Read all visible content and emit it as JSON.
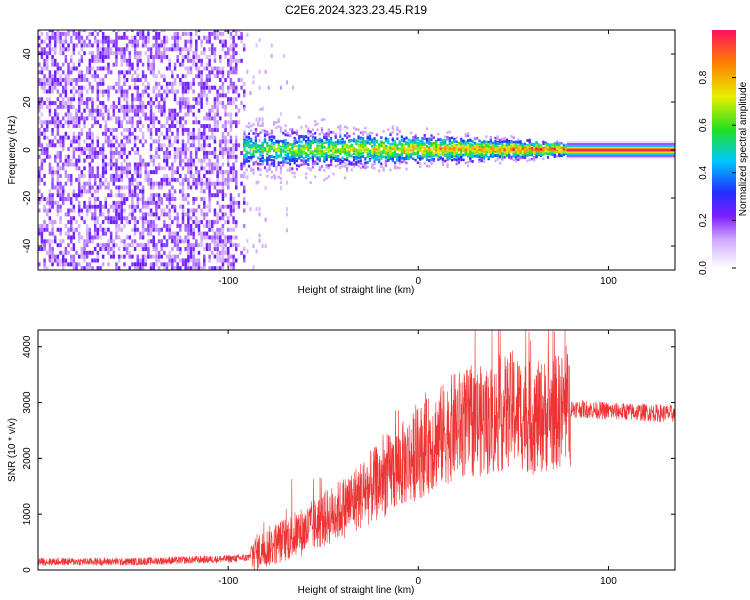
{
  "title": "C2E6.2024.323.23.45.R19",
  "chart_data": [
    {
      "type": "heatmap",
      "xlabel": "Height of straight line (km)",
      "ylabel": "Frequency (Hz)",
      "xlim": [
        -200,
        135
      ],
      "ylim": [
        -50,
        50
      ],
      "xticks": [
        -100,
        0,
        100
      ],
      "yticks": [
        -40,
        -20,
        0,
        20,
        40
      ],
      "colorbar": {
        "label": "Normalized spectral amplitude",
        "range": [
          0,
          1
        ],
        "ticks": [
          "0.0",
          "0.2",
          "0.4",
          "0.6",
          "0.8"
        ]
      },
      "regions": [
        {
          "from": -200,
          "to": -92,
          "description_value": "broadband noise",
          "level": 0.2
        },
        {
          "from": -92,
          "to": 78,
          "center_hz": 0,
          "spread_hz": 8,
          "level": 0.5
        },
        {
          "from": 78,
          "to": 135,
          "center_hz": 0,
          "spread_hz": 2,
          "level": 0.95
        }
      ]
    },
    {
      "type": "line",
      "xlabel": "Height of straight line (km)",
      "ylabel": "SNR (10 * v/v)",
      "xlim": [
        -200,
        135
      ],
      "ylim": [
        0,
        4300
      ],
      "xticks": [
        -100,
        0,
        100
      ],
      "yticks": [
        0,
        1000,
        2000,
        3000,
        4000
      ],
      "color": "#ee3333",
      "series": [
        {
          "x": [
            -200,
            -150,
            -100,
            -90,
            -80,
            -60,
            -40,
            -20,
            0,
            20,
            40,
            50,
            60,
            80,
            100,
            135
          ],
          "y": [
            150,
            150,
            200,
            220,
            400,
            700,
            1100,
            1600,
            2100,
            2600,
            2700,
            2900,
            2700,
            2900,
            2850,
            2800
          ]
        }
      ]
    }
  ]
}
